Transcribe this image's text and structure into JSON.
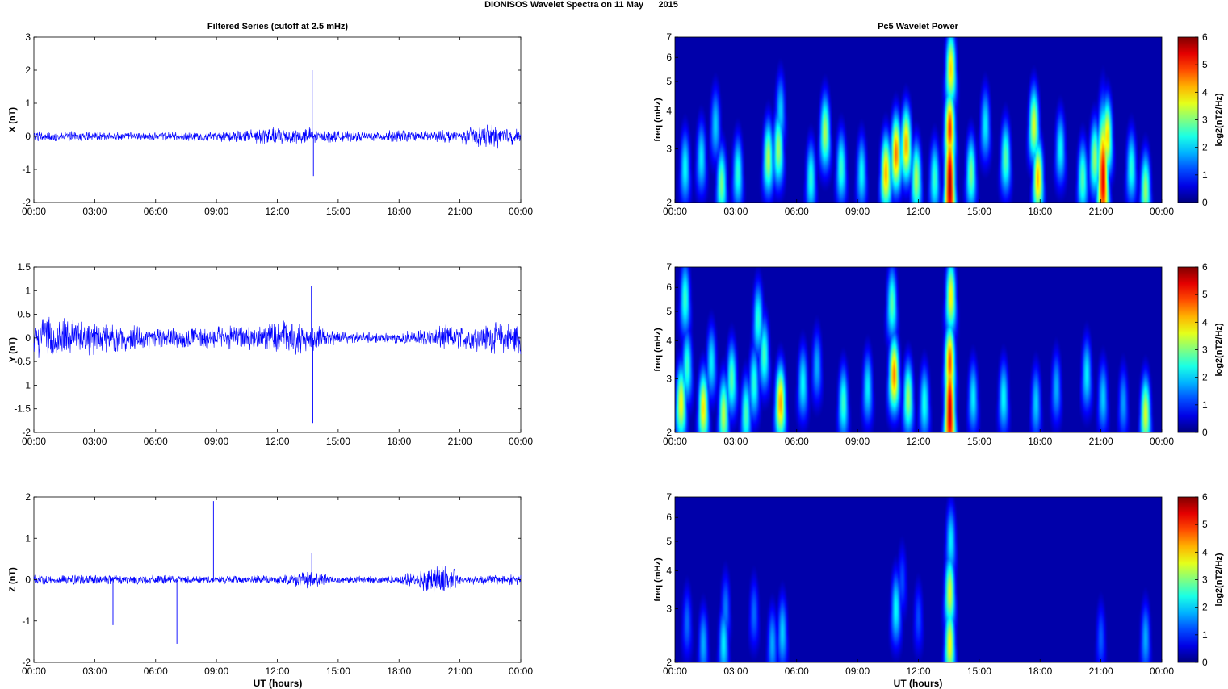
{
  "figure": {
    "title": "DIONISOS Wavelet Spectra on 11 May      2015",
    "left_title": "Filtered Series (cutoff at 2.5 mHz)",
    "right_title": "Pc5 Wavelet Power",
    "xlabel": "UT (hours)"
  },
  "chart_data": [
    {
      "type": "line",
      "component": "X",
      "ylabel": "X (nT)",
      "xticks": [
        "00:00",
        "03:00",
        "06:00",
        "09:00",
        "12:00",
        "15:00",
        "18:00",
        "21:00",
        "00:00"
      ],
      "yticks": [
        "3",
        "2",
        "1",
        "0",
        "-1",
        "-2"
      ],
      "ylim": [
        -2,
        3
      ],
      "xlim_hours": [
        0,
        24
      ],
      "line_color": "#0000ff",
      "noise_profile": [
        [
          0,
          0.12
        ],
        [
          3,
          0.1
        ],
        [
          6,
          0.09
        ],
        [
          9,
          0.11
        ],
        [
          11,
          0.18
        ],
        [
          13.5,
          0.22
        ],
        [
          14,
          0.14
        ],
        [
          17,
          0.1
        ],
        [
          18,
          0.16
        ],
        [
          19,
          0.12
        ],
        [
          21,
          0.16
        ],
        [
          22.5,
          0.28
        ],
        [
          24,
          0.16
        ]
      ],
      "spikes": [
        {
          "t": 13.72,
          "v": 2.0
        },
        {
          "t": 13.78,
          "v": -1.2
        }
      ]
    },
    {
      "type": "line",
      "component": "Y",
      "ylabel": "Y (nT)",
      "xticks": [
        "00:00",
        "03:00",
        "06:00",
        "09:00",
        "12:00",
        "15:00",
        "18:00",
        "21:00",
        "00:00"
      ],
      "yticks": [
        "1.5",
        "1",
        "0.5",
        "0",
        "-0.5",
        "-1",
        "-1.5",
        "-2"
      ],
      "ylim": [
        -2,
        1.5
      ],
      "xlim_hours": [
        0,
        24
      ],
      "line_color": "#0000ff",
      "noise_profile": [
        [
          0,
          0.35
        ],
        [
          2,
          0.3
        ],
        [
          4,
          0.22
        ],
        [
          6,
          0.15
        ],
        [
          9,
          0.18
        ],
        [
          11,
          0.2
        ],
        [
          13,
          0.3
        ],
        [
          14.5,
          0.12
        ],
        [
          17,
          0.08
        ],
        [
          19,
          0.12
        ],
        [
          20,
          0.2
        ],
        [
          21,
          0.18
        ],
        [
          24,
          0.28
        ]
      ],
      "spikes": [
        {
          "t": 13.68,
          "v": 1.1
        },
        {
          "t": 13.75,
          "v": -1.8
        }
      ]
    },
    {
      "type": "line",
      "component": "Z",
      "ylabel": "Z (nT)",
      "xticks": [
        "00:00",
        "03:00",
        "06:00",
        "09:00",
        "12:00",
        "15:00",
        "18:00",
        "21:00",
        "00:00"
      ],
      "yticks": [
        "2",
        "1",
        "0",
        "-1",
        "-2"
      ],
      "ylim": [
        -2,
        2
      ],
      "xlim_hours": [
        0,
        24
      ],
      "line_color": "#0000ff",
      "noise_profile": [
        [
          0,
          0.08
        ],
        [
          3,
          0.09
        ],
        [
          6,
          0.08
        ],
        [
          9,
          0.07
        ],
        [
          12,
          0.08
        ],
        [
          13.5,
          0.15
        ],
        [
          15,
          0.06
        ],
        [
          18,
          0.07
        ],
        [
          19.5,
          0.25
        ],
        [
          20.5,
          0.3
        ],
        [
          21,
          0.08
        ],
        [
          24,
          0.1
        ]
      ],
      "spikes": [
        {
          "t": 3.9,
          "v": -1.1
        },
        {
          "t": 7.05,
          "v": -1.55
        },
        {
          "t": 8.85,
          "v": 1.9
        },
        {
          "t": 18.05,
          "v": 1.65
        },
        {
          "t": 13.7,
          "v": 0.65
        }
      ]
    },
    {
      "type": "heatmap",
      "component": "X",
      "ylabel": "freq (mHz)",
      "yticks": [
        "7",
        "6",
        "5",
        "4",
        "3",
        "2"
      ],
      "ylim_mHz": [
        2,
        7
      ],
      "yscale": "log",
      "xticks": [
        "00:00",
        "03:00",
        "06:00",
        "09:00",
        "12:00",
        "15:00",
        "18:00",
        "21:00",
        "00:00"
      ],
      "colorbar_label": "log2(nT2/Hz)",
      "colorbar_ticks": [
        "6",
        "5",
        "4",
        "3",
        "2",
        "1",
        "0"
      ],
      "clim": [
        0,
        6
      ],
      "colormap": "jet",
      "blobs": [
        {
          "t": 0.5,
          "f": 2.6,
          "a": 2.3
        },
        {
          "t": 1.3,
          "f": 2.8,
          "a": 2.2
        },
        {
          "t": 2.3,
          "f": 2.3,
          "a": 3.0
        },
        {
          "t": 2.0,
          "f": 3.6,
          "a": 2.0
        },
        {
          "t": 3.1,
          "f": 2.5,
          "a": 2.5
        },
        {
          "t": 4.6,
          "f": 2.8,
          "a": 3.3
        },
        {
          "t": 5.1,
          "f": 3.0,
          "a": 3.2
        },
        {
          "t": 5.2,
          "f": 4.0,
          "a": 2.0
        },
        {
          "t": 6.7,
          "f": 2.4,
          "a": 2.5
        },
        {
          "t": 7.4,
          "f": 3.4,
          "a": 3.3
        },
        {
          "t": 8.2,
          "f": 2.6,
          "a": 2.6
        },
        {
          "t": 9.2,
          "f": 2.5,
          "a": 2.3
        },
        {
          "t": 10.4,
          "f": 2.5,
          "a": 4.3
        },
        {
          "t": 10.9,
          "f": 2.9,
          "a": 4.6
        },
        {
          "t": 11.4,
          "f": 3.1,
          "a": 4.3
        },
        {
          "t": 11.9,
          "f": 2.4,
          "a": 3.3
        },
        {
          "t": 12.8,
          "f": 2.4,
          "a": 2.6
        },
        {
          "t": 13.55,
          "f": 2.3,
          "a": 5.8
        },
        {
          "t": 13.55,
          "f": 3.5,
          "a": 5.0
        },
        {
          "t": 13.6,
          "f": 5.5,
          "a": 4.0
        },
        {
          "t": 14.6,
          "f": 2.5,
          "a": 3.0
        },
        {
          "t": 15.3,
          "f": 3.6,
          "a": 2.2
        },
        {
          "t": 16.3,
          "f": 2.8,
          "a": 2.8
        },
        {
          "t": 17.9,
          "f": 2.4,
          "a": 4.2
        },
        {
          "t": 17.7,
          "f": 3.6,
          "a": 3.6
        },
        {
          "t": 19.0,
          "f": 3.0,
          "a": 2.3
        },
        {
          "t": 20.1,
          "f": 2.4,
          "a": 2.8
        },
        {
          "t": 20.7,
          "f": 2.8,
          "a": 3.2
        },
        {
          "t": 21.1,
          "f": 2.4,
          "a": 5.4
        },
        {
          "t": 21.3,
          "f": 3.3,
          "a": 4.0
        },
        {
          "t": 22.5,
          "f": 2.6,
          "a": 2.5
        },
        {
          "t": 23.2,
          "f": 2.2,
          "a": 3.2
        }
      ]
    },
    {
      "type": "heatmap",
      "component": "Y",
      "ylabel": "freq (mHz)",
      "yticks": [
        "7",
        "6",
        "5",
        "4",
        "3",
        "2"
      ],
      "ylim_mHz": [
        2,
        7
      ],
      "yscale": "log",
      "xticks": [
        "00:00",
        "03:00",
        "06:00",
        "09:00",
        "12:00",
        "15:00",
        "18:00",
        "21:00",
        "00:00"
      ],
      "colorbar_label": "log2(nT2/Hz)",
      "colorbar_ticks": [
        "6",
        "5",
        "4",
        "3",
        "2",
        "1",
        "0"
      ],
      "clim": [
        0,
        6
      ],
      "colormap": "jet",
      "blobs": [
        {
          "t": 0.3,
          "f": 2.5,
          "a": 3.8
        },
        {
          "t": 0.6,
          "f": 3.3,
          "a": 2.6
        },
        {
          "t": 0.5,
          "f": 5.5,
          "a": 2.6
        },
        {
          "t": 1.4,
          "f": 2.4,
          "a": 3.9
        },
        {
          "t": 1.8,
          "f": 3.4,
          "a": 2.2
        },
        {
          "t": 2.4,
          "f": 2.3,
          "a": 3.4
        },
        {
          "t": 2.8,
          "f": 3.0,
          "a": 2.8
        },
        {
          "t": 3.5,
          "f": 2.3,
          "a": 2.7
        },
        {
          "t": 3.9,
          "f": 2.9,
          "a": 2.5
        },
        {
          "t": 4.1,
          "f": 4.7,
          "a": 2.5
        },
        {
          "t": 4.4,
          "f": 3.6,
          "a": 2.7
        },
        {
          "t": 5.2,
          "f": 2.5,
          "a": 4.3
        },
        {
          "t": 6.3,
          "f": 2.9,
          "a": 2.3
        },
        {
          "t": 7.0,
          "f": 3.3,
          "a": 1.8
        },
        {
          "t": 8.3,
          "f": 2.5,
          "a": 2.6
        },
        {
          "t": 9.5,
          "f": 2.8,
          "a": 2.2
        },
        {
          "t": 10.8,
          "f": 3.1,
          "a": 4.5
        },
        {
          "t": 10.7,
          "f": 5.3,
          "a": 2.8
        },
        {
          "t": 11.5,
          "f": 2.6,
          "a": 3.2
        },
        {
          "t": 12.3,
          "f": 2.5,
          "a": 2.4
        },
        {
          "t": 13.55,
          "f": 2.35,
          "a": 5.6
        },
        {
          "t": 13.55,
          "f": 3.4,
          "a": 4.8
        },
        {
          "t": 13.6,
          "f": 5.6,
          "a": 3.8
        },
        {
          "t": 14.7,
          "f": 2.6,
          "a": 2.2
        },
        {
          "t": 16.2,
          "f": 2.6,
          "a": 2.3
        },
        {
          "t": 17.8,
          "f": 2.5,
          "a": 2.0
        },
        {
          "t": 18.8,
          "f": 2.8,
          "a": 1.8
        },
        {
          "t": 20.3,
          "f": 3.1,
          "a": 2.2
        },
        {
          "t": 21.1,
          "f": 2.6,
          "a": 2.0
        },
        {
          "t": 22.1,
          "f": 2.5,
          "a": 1.7
        },
        {
          "t": 23.2,
          "f": 2.3,
          "a": 3.6
        }
      ]
    },
    {
      "type": "heatmap",
      "component": "Z",
      "ylabel": "freq (mHz)",
      "yticks": [
        "7",
        "6",
        "5",
        "4",
        "3",
        "2"
      ],
      "ylim_mHz": [
        2,
        7
      ],
      "yscale": "log",
      "xticks": [
        "00:00",
        "03:00",
        "06:00",
        "09:00",
        "12:00",
        "15:00",
        "18:00",
        "21:00",
        "00:00"
      ],
      "colorbar_label": "log2(nT2/Hz)",
      "colorbar_ticks": [
        "6",
        "5",
        "4",
        "3",
        "2",
        "1",
        "0"
      ],
      "clim": [
        0,
        6
      ],
      "colormap": "jet",
      "blobs": [
        {
          "t": 0.6,
          "f": 2.7,
          "a": 1.4
        },
        {
          "t": 1.4,
          "f": 2.3,
          "a": 1.8
        },
        {
          "t": 2.4,
          "f": 2.3,
          "a": 2.2
        },
        {
          "t": 2.5,
          "f": 3.0,
          "a": 1.5
        },
        {
          "t": 3.9,
          "f": 2.9,
          "a": 1.4
        },
        {
          "t": 4.8,
          "f": 2.3,
          "a": 1.8
        },
        {
          "t": 5.3,
          "f": 2.5,
          "a": 2.0
        },
        {
          "t": 10.9,
          "f": 3.0,
          "a": 2.3
        },
        {
          "t": 11.2,
          "f": 3.7,
          "a": 1.2
        },
        {
          "t": 12.0,
          "f": 2.8,
          "a": 1.2
        },
        {
          "t": 13.55,
          "f": 2.3,
          "a": 3.8
        },
        {
          "t": 13.55,
          "f": 3.4,
          "a": 3.6
        },
        {
          "t": 13.6,
          "f": 5.0,
          "a": 2.2
        },
        {
          "t": 21.0,
          "f": 2.4,
          "a": 1.3
        },
        {
          "t": 23.2,
          "f": 2.4,
          "a": 1.8
        }
      ]
    }
  ]
}
